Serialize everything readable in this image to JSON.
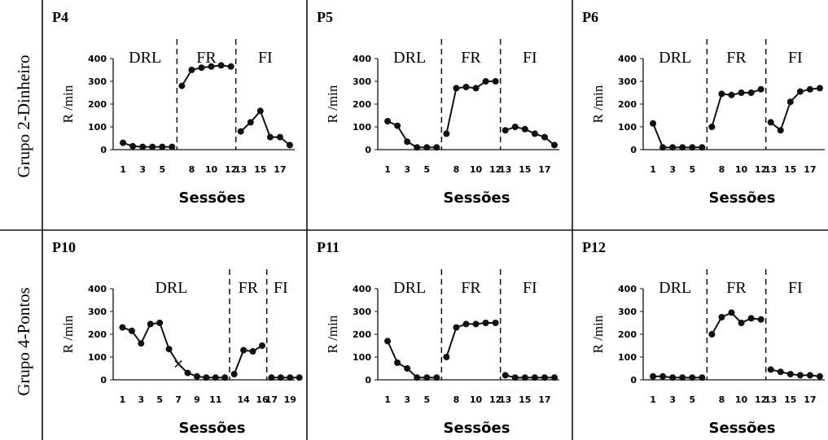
{
  "figure": {
    "rows": [
      {
        "label": "Grupo 2-Dinheiro"
      },
      {
        "label": "Grupo 4-Pontos"
      }
    ]
  },
  "chart_data": [
    {
      "type": "line",
      "title": "P4",
      "xlabel": "Sessões",
      "ylabel": "R /min",
      "ylim": [
        0,
        400
      ],
      "yticks": [
        0,
        100,
        200,
        300,
        400
      ],
      "xticks": [
        1,
        3,
        5,
        8,
        10,
        12,
        13,
        15,
        17
      ],
      "xlim": [
        0,
        18.5
      ],
      "phases": [
        {
          "label": "DRL"
        },
        {
          "label": "FR"
        },
        {
          "label": "FI"
        }
      ],
      "phase_breaks": [
        6.5,
        12.5
      ],
      "series": [
        {
          "x": [
            1,
            2,
            3,
            4,
            5,
            6
          ],
          "y": [
            30,
            15,
            12,
            12,
            12,
            12
          ]
        },
        {
          "x": [
            7,
            8,
            9,
            10,
            11,
            12
          ],
          "y": [
            280,
            350,
            360,
            365,
            370,
            365
          ]
        },
        {
          "x": [
            13,
            14,
            15,
            16,
            17,
            18
          ],
          "y": [
            80,
            120,
            170,
            55,
            55,
            20
          ]
        }
      ]
    },
    {
      "type": "line",
      "title": "P5",
      "xlabel": "Sessões",
      "ylabel": "R /min",
      "ylim": [
        0,
        400
      ],
      "yticks": [
        0,
        100,
        200,
        300,
        400
      ],
      "xticks": [
        1,
        3,
        5,
        8,
        10,
        12,
        13,
        15,
        17
      ],
      "xlim": [
        0,
        18.5
      ],
      "phases": [
        {
          "label": "DRL"
        },
        {
          "label": "FR"
        },
        {
          "label": "FI"
        }
      ],
      "phase_breaks": [
        6.5,
        12.5
      ],
      "series": [
        {
          "x": [
            1,
            2,
            3,
            4,
            5,
            6
          ],
          "y": [
            125,
            105,
            35,
            10,
            10,
            10
          ]
        },
        {
          "x": [
            7,
            8,
            9,
            10,
            11,
            12
          ],
          "y": [
            70,
            270,
            275,
            270,
            300,
            300
          ]
        },
        {
          "x": [
            13,
            14,
            15,
            16,
            17,
            18
          ],
          "y": [
            85,
            100,
            90,
            70,
            55,
            20
          ]
        }
      ]
    },
    {
      "type": "line",
      "title": "P6",
      "xlabel": "Sessões",
      "ylabel": "R /min",
      "ylim": [
        0,
        400
      ],
      "yticks": [
        0,
        100,
        200,
        300,
        400
      ],
      "xticks": [
        1,
        3,
        5,
        8,
        10,
        12,
        13,
        15,
        17
      ],
      "xlim": [
        0,
        18.5
      ],
      "phases": [
        {
          "label": "DRL"
        },
        {
          "label": "FR"
        },
        {
          "label": "FI"
        }
      ],
      "phase_breaks": [
        6.5,
        12.5
      ],
      "series": [
        {
          "x": [
            1,
            2,
            3,
            4,
            5,
            6
          ],
          "y": [
            115,
            10,
            10,
            10,
            10,
            10
          ]
        },
        {
          "x": [
            7,
            8,
            9,
            10,
            11,
            12
          ],
          "y": [
            100,
            245,
            240,
            250,
            250,
            265
          ]
        },
        {
          "x": [
            13,
            14,
            15,
            16,
            17,
            18
          ],
          "y": [
            120,
            85,
            210,
            255,
            265,
            270
          ]
        }
      ]
    },
    {
      "type": "line",
      "title": "P10",
      "xlabel": "Sessões",
      "ylabel": "R /min",
      "ylim": [
        0,
        400
      ],
      "yticks": [
        0,
        100,
        200,
        300,
        400
      ],
      "xticks": [
        1,
        3,
        5,
        7,
        9,
        11,
        14,
        16,
        17,
        19
      ],
      "xlim": [
        0,
        19.5
      ],
      "phases": [
        {
          "label": "DRL"
        },
        {
          "label": "FR"
        },
        {
          "label": "FI"
        }
      ],
      "phase_breaks": [
        12.5,
        16.5
      ],
      "series": [
        {
          "x": [
            1,
            2,
            3,
            4,
            5,
            6
          ],
          "y": [
            230,
            215,
            160,
            245,
            250,
            135
          ],
          "marker": "circle"
        },
        {
          "x": [
            6,
            7,
            8
          ],
          "y": [
            135,
            70,
            30
          ],
          "marker": "x"
        },
        {
          "x": [
            8,
            9,
            10,
            11,
            12
          ],
          "y": [
            30,
            15,
            10,
            10,
            10
          ],
          "marker": "circle"
        },
        {
          "x": [
            13,
            14,
            15,
            16
          ],
          "y": [
            25,
            130,
            125,
            150
          ]
        },
        {
          "x": [
            17,
            18,
            19,
            20
          ],
          "y": [
            10,
            10,
            10,
            10
          ]
        }
      ]
    },
    {
      "type": "line",
      "title": "P11",
      "xlabel": "Sessões",
      "ylabel": "R /min",
      "ylim": [
        0,
        400
      ],
      "yticks": [
        0,
        100,
        200,
        300,
        400
      ],
      "xticks": [
        1,
        3,
        5,
        8,
        10,
        12,
        13,
        15,
        17
      ],
      "xlim": [
        0,
        18.5
      ],
      "phases": [
        {
          "label": "DRL"
        },
        {
          "label": "FR"
        },
        {
          "label": "FI"
        }
      ],
      "phase_breaks": [
        6.5,
        12.5
      ],
      "series": [
        {
          "x": [
            1,
            2,
            3,
            4,
            5,
            6
          ],
          "y": [
            170,
            75,
            50,
            10,
            10,
            10
          ]
        },
        {
          "x": [
            7,
            8,
            9,
            10,
            11,
            12
          ],
          "y": [
            100,
            230,
            245,
            245,
            250,
            250
          ]
        },
        {
          "x": [
            13,
            14,
            15,
            16,
            17,
            18
          ],
          "y": [
            20,
            10,
            10,
            10,
            10,
            10
          ]
        }
      ]
    },
    {
      "type": "line",
      "title": "P12",
      "xlabel": "Sessões",
      "ylabel": "R /min",
      "ylim": [
        0,
        400
      ],
      "yticks": [
        0,
        100,
        200,
        300,
        400
      ],
      "xticks": [
        1,
        3,
        5,
        8,
        10,
        12,
        13,
        15,
        17
      ],
      "xlim": [
        0,
        18.5
      ],
      "phases": [
        {
          "label": "DRL"
        },
        {
          "label": "FR"
        },
        {
          "label": "FI"
        }
      ],
      "phase_breaks": [
        6.5,
        12.5
      ],
      "series": [
        {
          "x": [
            1,
            2,
            3,
            4,
            5,
            6
          ],
          "y": [
            15,
            15,
            10,
            10,
            10,
            10
          ]
        },
        {
          "x": [
            7,
            8,
            9,
            10,
            11,
            12
          ],
          "y": [
            200,
            275,
            295,
            250,
            270,
            265
          ]
        },
        {
          "x": [
            13,
            14,
            15,
            16,
            17,
            18
          ],
          "y": [
            45,
            35,
            25,
            20,
            20,
            15
          ]
        }
      ]
    }
  ]
}
